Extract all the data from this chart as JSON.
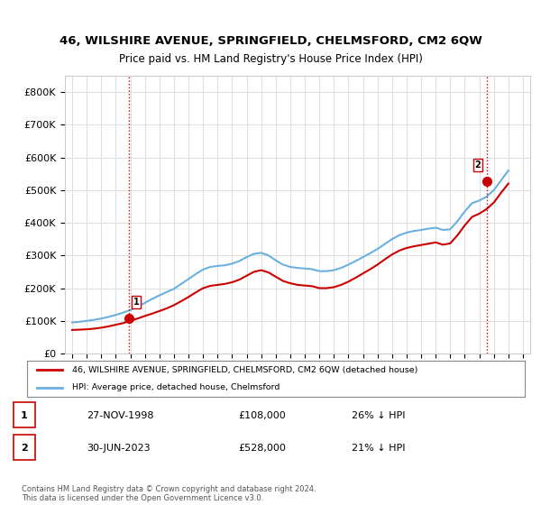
{
  "title": "46, WILSHIRE AVENUE, SPRINGFIELD, CHELMSFORD, CM2 6QW",
  "subtitle": "Price paid vs. HM Land Registry's House Price Index (HPI)",
  "xlabel": "",
  "ylabel": "",
  "ylim": [
    0,
    850000
  ],
  "yticks": [
    0,
    100000,
    200000,
    300000,
    400000,
    500000,
    600000,
    700000,
    800000
  ],
  "ytick_labels": [
    "£0",
    "£100K",
    "£200K",
    "£300K",
    "£400K",
    "£500K",
    "£600K",
    "£700K",
    "£800K"
  ],
  "x_start_year": 1995,
  "x_end_year": 2026,
  "hpi_color": "#6ab0e0",
  "price_color": "#cc0000",
  "vline_color": "#cc0000",
  "vline_style": ":",
  "point1_year": 1998.9,
  "point1_value": 108000,
  "point2_year": 2023.5,
  "point2_value": 528000,
  "legend_label1": "46, WILSHIRE AVENUE, SPRINGFIELD, CHELMSFORD, CM2 6QW (detached house)",
  "legend_label2": "HPI: Average price, detached house, Chelmsford",
  "table_row1": [
    "1",
    "27-NOV-1998",
    "£108,000",
    "26% ↓ HPI"
  ],
  "table_row2": [
    "2",
    "30-JUN-2023",
    "£528,000",
    "21% ↓ HPI"
  ],
  "footnote": "Contains HM Land Registry data © Crown copyright and database right 2024.\nThis data is licensed under the Open Government Licence v3.0.",
  "grid_color": "#e0e0e0",
  "bg_color": "#ffffff",
  "hpi_data_years": [
    1995,
    1995.5,
    1996,
    1996.5,
    1997,
    1997.5,
    1998,
    1998.5,
    1999,
    1999.5,
    2000,
    2000.5,
    2001,
    2001.5,
    2002,
    2002.5,
    2003,
    2003.5,
    2004,
    2004.5,
    2005,
    2005.5,
    2006,
    2006.5,
    2007,
    2007.5,
    2008,
    2008.5,
    2009,
    2009.5,
    2010,
    2010.5,
    2011,
    2011.5,
    2012,
    2012.5,
    2013,
    2013.5,
    2014,
    2014.5,
    2015,
    2015.5,
    2016,
    2016.5,
    2017,
    2017.5,
    2018,
    2018.5,
    2019,
    2019.5,
    2020,
    2020.5,
    2021,
    2021.5,
    2022,
    2022.5,
    2023,
    2023.5,
    2024,
    2024.5,
    2025
  ],
  "hpi_data_values": [
    95000,
    97000,
    100000,
    103000,
    107000,
    112000,
    118000,
    125000,
    133000,
    143000,
    155000,
    167000,
    178000,
    188000,
    198000,
    213000,
    228000,
    243000,
    257000,
    265000,
    268000,
    270000,
    275000,
    283000,
    295000,
    305000,
    308000,
    300000,
    285000,
    272000,
    265000,
    262000,
    260000,
    258000,
    252000,
    252000,
    255000,
    262000,
    272000,
    283000,
    295000,
    307000,
    320000,
    335000,
    350000,
    362000,
    370000,
    375000,
    378000,
    382000,
    385000,
    378000,
    380000,
    405000,
    435000,
    460000,
    468000,
    480000,
    500000,
    530000,
    560000
  ],
  "price_data_years": [
    1995,
    1995.5,
    1996,
    1996.5,
    1997,
    1997.5,
    1998,
    1998.5,
    1999,
    1999.5,
    2000,
    2000.5,
    2001,
    2001.5,
    2002,
    2002.5,
    2003,
    2003.5,
    2004,
    2004.5,
    2005,
    2005.5,
    2006,
    2006.5,
    2007,
    2007.5,
    2008,
    2008.5,
    2009,
    2009.5,
    2010,
    2010.5,
    2011,
    2011.5,
    2012,
    2012.5,
    2013,
    2013.5,
    2014,
    2014.5,
    2015,
    2015.5,
    2016,
    2016.5,
    2017,
    2017.5,
    2018,
    2018.5,
    2019,
    2019.5,
    2020,
    2020.5,
    2021,
    2021.5,
    2022,
    2022.5,
    2023,
    2023.5,
    2024,
    2024.5,
    2025
  ],
  "price_data_values": [
    72000,
    73000,
    74000,
    76000,
    79000,
    83000,
    88000,
    93000,
    100000,
    107000,
    115000,
    122000,
    130000,
    138000,
    148000,
    160000,
    173000,
    187000,
    200000,
    207000,
    210000,
    213000,
    218000,
    226000,
    238000,
    250000,
    255000,
    248000,
    235000,
    222000,
    215000,
    210000,
    208000,
    206000,
    200000,
    200000,
    203000,
    210000,
    220000,
    232000,
    245000,
    258000,
    272000,
    288000,
    303000,
    315000,
    323000,
    328000,
    332000,
    336000,
    340000,
    333000,
    337000,
    362000,
    392000,
    418000,
    428000,
    442000,
    462000,
    492000,
    520000
  ]
}
